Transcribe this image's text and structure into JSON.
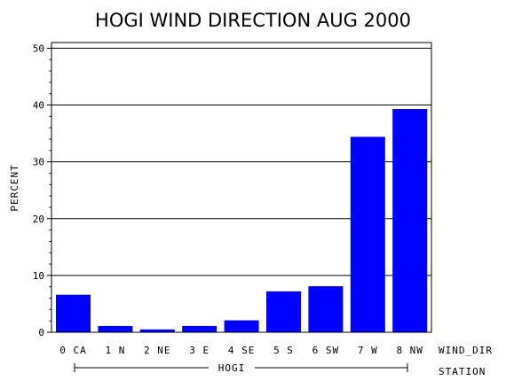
{
  "chart_data": {
    "type": "bar",
    "title": "HOGI WIND DIRECTION AUG 2000",
    "ylabel": "PERCENT",
    "xlabel": "WIND_DIR",
    "group_label": "STATION",
    "group_name": "HOGI",
    "categories": [
      "0 CA",
      "1 N",
      "2 NE",
      "3 E",
      "4 SE",
      "5 S",
      "6 SW",
      "7 W",
      "8 NW"
    ],
    "values": [
      6.6,
      1.1,
      0.5,
      1.1,
      2.1,
      7.2,
      8.1,
      34.4,
      39.3
    ],
    "ylim": [
      0,
      51
    ],
    "yticks": [
      "0",
      "10",
      "20",
      "30",
      "40",
      "50"
    ],
    "grid": true,
    "bar_color": "#0000ff"
  }
}
